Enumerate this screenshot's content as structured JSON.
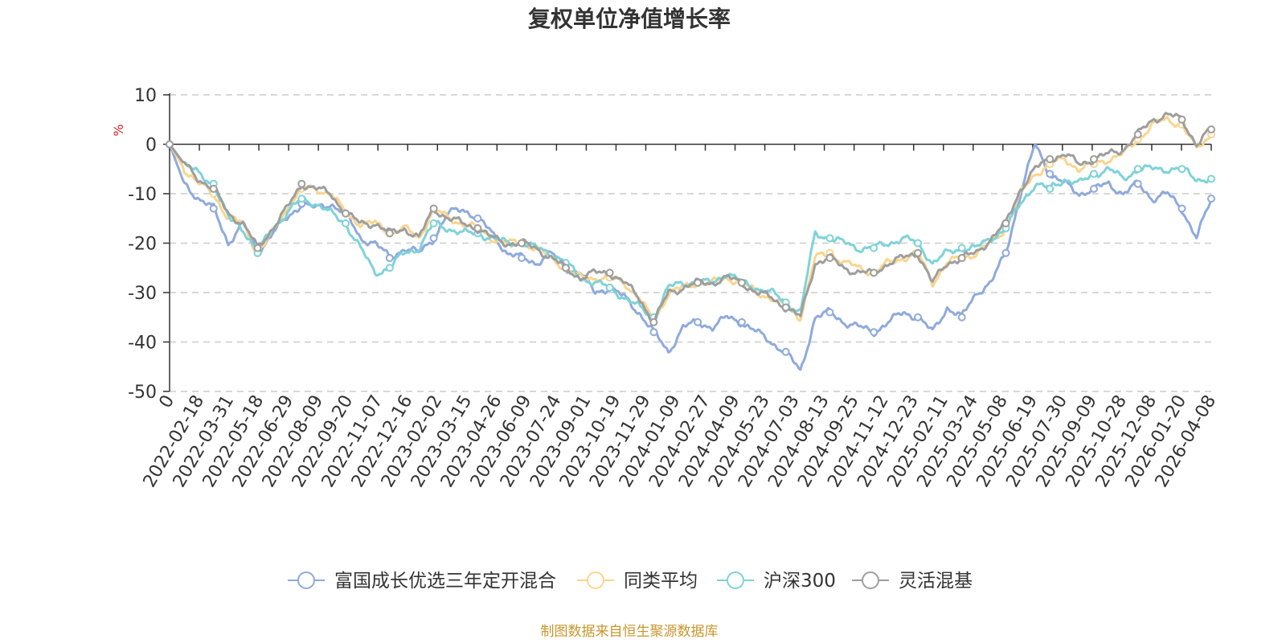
{
  "chart_data": {
    "type": "line",
    "title": "复权单位净值增长率",
    "ylabel": "%",
    "ylim": [
      -50,
      10
    ],
    "yticks": [
      10,
      0,
      -10,
      -20,
      -30,
      -40,
      -50
    ],
    "x_start": "2022-01-04",
    "x_end": "2026-04-15",
    "xticks": [
      "0",
      "2022-02-18",
      "2022-03-31",
      "2022-05-18",
      "2022-06-29",
      "2022-08-09",
      "2022-09-20",
      "2022-11-07",
      "2022-12-16",
      "2023-02-02",
      "2023-03-15",
      "2023-04-26",
      "2023-06-09",
      "2023-07-24",
      "2023-09-01",
      "2023-10-19",
      "2023-11-29",
      "2024-01-09",
      "2024-02-27",
      "2024-04-09",
      "2024-05-23",
      "2024-07-03",
      "2024-08-13",
      "2024-09-25",
      "2024-11-12",
      "2024-12-23",
      "2025-02-11",
      "2025-03-24",
      "2025-05-08",
      "2025-06-19",
      "2025-07-30",
      "2025-09-09",
      "2025-10-28",
      "2025-12-08",
      "2026-01-20",
      "2026-04-08"
    ],
    "grid": true,
    "legend_position": "bottom",
    "series": [
      {
        "name": "富国成长优选三年定开混合",
        "color": "#8FAADC",
        "values": [
          0,
          -8,
          -11,
          -13,
          -20,
          -16,
          -22,
          -18,
          -15,
          -12,
          -13,
          -12,
          -14,
          -19,
          -20,
          -23,
          -21,
          -22,
          -19,
          -14,
          -13,
          -15,
          -18,
          -22,
          -23,
          -24,
          -22,
          -25,
          -26,
          -30,
          -29,
          -31,
          -34,
          -38,
          -42,
          -37,
          -36,
          -37,
          -35,
          -36,
          -38,
          -40,
          -42,
          -46,
          -35,
          -34,
          -36,
          -37,
          -38,
          -36,
          -34,
          -35,
          -38,
          -33,
          -35,
          -30,
          -28,
          -22,
          -10,
          0,
          -6,
          -8,
          -10,
          -9,
          -8,
          -10,
          -8,
          -11,
          -10,
          -13,
          -19,
          -11
        ]
      },
      {
        "name": "同类平均",
        "color": "#F9D58E",
        "values": [
          0,
          -5,
          -8,
          -10,
          -15,
          -16,
          -22,
          -18,
          -13,
          -9,
          -9,
          -10,
          -14,
          -16,
          -16,
          -18,
          -17,
          -19,
          -13,
          -15,
          -16,
          -17,
          -19,
          -20,
          -20,
          -21,
          -23,
          -25,
          -27,
          -27,
          -27,
          -28,
          -31,
          -36,
          -30,
          -29,
          -28,
          -28,
          -27,
          -28,
          -30,
          -31,
          -33,
          -35,
          -23,
          -22,
          -24,
          -25,
          -26,
          -24,
          -23,
          -22,
          -28,
          -24,
          -23,
          -22,
          -20,
          -17,
          -10,
          -6,
          -4,
          -3,
          -5,
          -4,
          -3,
          -2,
          1,
          4,
          5,
          4,
          -1,
          2
        ]
      },
      {
        "name": "沪深300",
        "color": "#7ED3D8",
        "values": [
          0,
          -4,
          -6,
          -8,
          -15,
          -17,
          -22,
          -17,
          -14,
          -11,
          -12,
          -14,
          -16,
          -21,
          -26,
          -25,
          -22,
          -21,
          -16,
          -17,
          -18,
          -18,
          -19,
          -20,
          -20,
          -21,
          -22,
          -24,
          -27,
          -28,
          -29,
          -31,
          -33,
          -35,
          -29,
          -28,
          -28,
          -28,
          -26,
          -28,
          -29,
          -30,
          -32,
          -34,
          -18,
          -19,
          -20,
          -21,
          -21,
          -20,
          -19,
          -20,
          -24,
          -22,
          -21,
          -21,
          -19,
          -17,
          -12,
          -8,
          -9,
          -7,
          -8,
          -6,
          -5,
          -7,
          -5,
          -5,
          -5,
          -5,
          -7,
          -7
        ]
      },
      {
        "name": "灵活混基",
        "color": "#9E9E9E",
        "values": [
          0,
          -4,
          -7,
          -9,
          -14,
          -16,
          -21,
          -17,
          -13,
          -8,
          -9,
          -10,
          -14,
          -16,
          -16,
          -18,
          -17,
          -19,
          -13,
          -15,
          -16,
          -17,
          -19,
          -20,
          -20,
          -21,
          -23,
          -25,
          -27,
          -26,
          -26,
          -28,
          -31,
          -36,
          -30,
          -29,
          -28,
          -28,
          -27,
          -28,
          -30,
          -31,
          -33,
          -35,
          -24,
          -23,
          -25,
          -26,
          -26,
          -24,
          -23,
          -22,
          -28,
          -24,
          -23,
          -22,
          -19,
          -16,
          -9,
          -5,
          -3,
          -2,
          -4,
          -3,
          -2,
          -1,
          2,
          5,
          6,
          5,
          0,
          3
        ]
      }
    ]
  },
  "source_note": "制图数据来自恒生聚源数据库",
  "colors": {
    "unit": "#e02020",
    "source": "#c8962d"
  }
}
